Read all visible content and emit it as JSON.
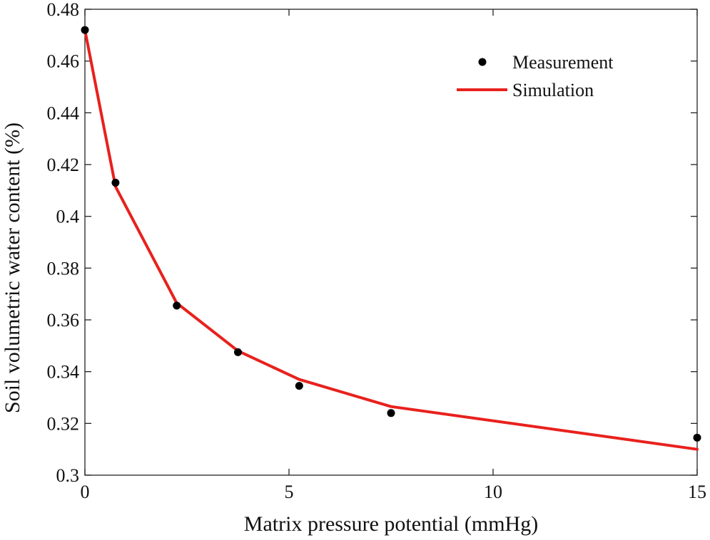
{
  "chart_data": {
    "type": "line",
    "title": "",
    "xlabel": "Matrix pressure potential (mmHg)",
    "ylabel": "Soil volumetric water content (%)",
    "xlim": [
      0,
      15
    ],
    "ylim": [
      0.3,
      0.48
    ],
    "xticks": [
      0,
      5,
      10,
      15
    ],
    "xtick_labels": [
      "0",
      "5",
      "10",
      "15"
    ],
    "yticks": [
      0.3,
      0.32,
      0.34,
      0.36,
      0.38,
      0.4,
      0.42,
      0.44,
      0.46,
      0.48
    ],
    "ytick_labels": [
      "0.3",
      "0.32",
      "0.34",
      "0.36",
      "0.38",
      "0.4",
      "0.42",
      "0.44",
      "0.46",
      "0.48"
    ],
    "grid": false,
    "legend_position": "top-right",
    "series": [
      {
        "name": "Measurement",
        "kind": "scatter",
        "color": "#000000",
        "x": [
          0,
          0.75,
          2.25,
          3.75,
          5.25,
          7.5,
          15
        ],
        "y": [
          0.472,
          0.413,
          0.3655,
          0.3475,
          0.3345,
          0.324,
          0.3145
        ]
      },
      {
        "name": "Simulation",
        "kind": "line",
        "color": "#e8211d",
        "x": [
          0,
          0.75,
          2.25,
          3.75,
          5.25,
          7.5,
          15
        ],
        "y": [
          0.472,
          0.4115,
          0.3665,
          0.348,
          0.337,
          0.3265,
          0.31
        ]
      }
    ]
  }
}
